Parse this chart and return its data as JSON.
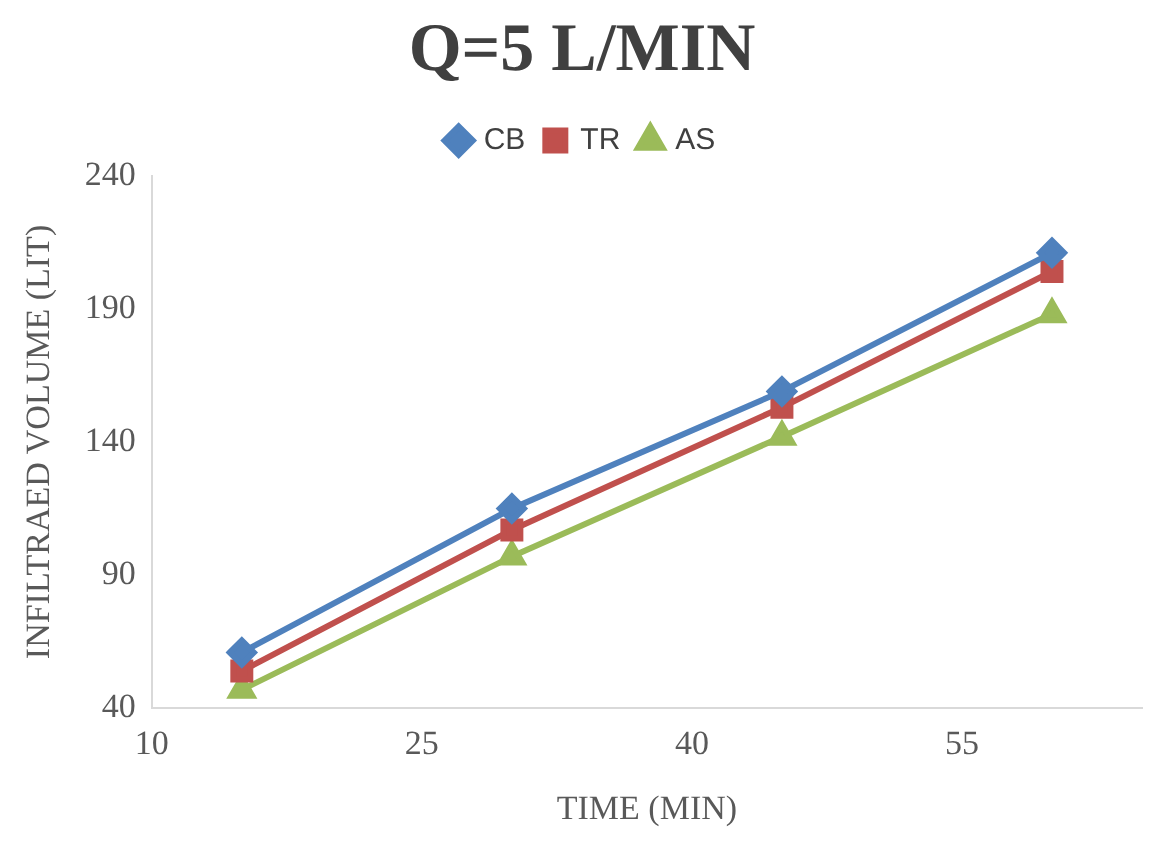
{
  "chart_data": {
    "type": "line",
    "title": "Q=5 L/MIN",
    "xlabel": "TIME (MIN)",
    "ylabel": "INFILTRAED VOLUME (LIT)",
    "x": [
      15,
      30,
      45,
      60
    ],
    "series": [
      {
        "name": "CB",
        "color": "#4f81bd",
        "marker": "diamond",
        "values": [
          61,
          115,
          159,
          211
        ]
      },
      {
        "name": "TR",
        "color": "#c0504d",
        "marker": "square",
        "values": [
          54,
          107,
          153,
          204
        ]
      },
      {
        "name": "AS",
        "color": "#9bbb59",
        "marker": "triangle",
        "values": [
          47,
          97,
          142,
          188
        ]
      }
    ],
    "xlim": [
      10,
      65
    ],
    "xticks": [
      10,
      25,
      40,
      55
    ],
    "ylim": [
      40,
      240
    ],
    "yticks": [
      40,
      90,
      140,
      190,
      240
    ],
    "grid": false,
    "legend": "top"
  }
}
